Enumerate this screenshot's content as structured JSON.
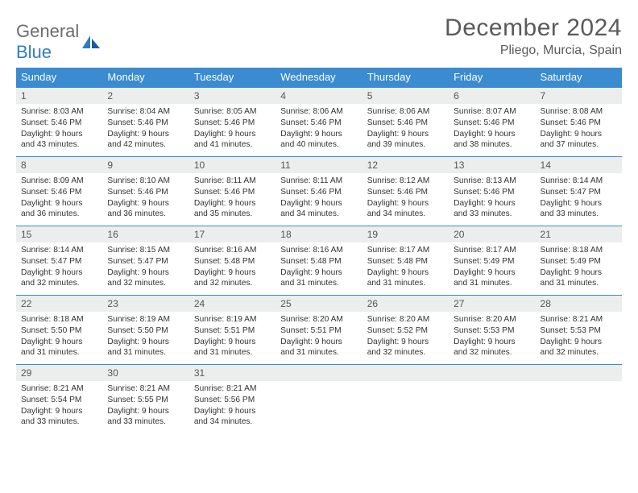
{
  "brand": {
    "word1": "General",
    "word2": "Blue"
  },
  "title": "December 2024",
  "location": "Pliego, Murcia, Spain",
  "colors": {
    "header_bg": "#3a8bd0",
    "header_text": "#ffffff",
    "daynum_bg": "#eceded",
    "rule": "#3a8bd0",
    "body_text": "#333333",
    "title_color": "#5a5a5a",
    "logo_gray": "#6c6c6c",
    "logo_blue": "#2f7bc2"
  },
  "typography": {
    "title_fontsize": 30,
    "location_fontsize": 16,
    "dow_fontsize": 13,
    "daynum_fontsize": 12,
    "body_fontsize": 10.2
  },
  "days_of_week": [
    "Sunday",
    "Monday",
    "Tuesday",
    "Wednesday",
    "Thursday",
    "Friday",
    "Saturday"
  ],
  "weeks": [
    [
      {
        "n": "1",
        "sr": "8:03 AM",
        "ss": "5:46 PM",
        "dl": "9 hours and 43 minutes."
      },
      {
        "n": "2",
        "sr": "8:04 AM",
        "ss": "5:46 PM",
        "dl": "9 hours and 42 minutes."
      },
      {
        "n": "3",
        "sr": "8:05 AM",
        "ss": "5:46 PM",
        "dl": "9 hours and 41 minutes."
      },
      {
        "n": "4",
        "sr": "8:06 AM",
        "ss": "5:46 PM",
        "dl": "9 hours and 40 minutes."
      },
      {
        "n": "5",
        "sr": "8:06 AM",
        "ss": "5:46 PM",
        "dl": "9 hours and 39 minutes."
      },
      {
        "n": "6",
        "sr": "8:07 AM",
        "ss": "5:46 PM",
        "dl": "9 hours and 38 minutes."
      },
      {
        "n": "7",
        "sr": "8:08 AM",
        "ss": "5:46 PM",
        "dl": "9 hours and 37 minutes."
      }
    ],
    [
      {
        "n": "8",
        "sr": "8:09 AM",
        "ss": "5:46 PM",
        "dl": "9 hours and 36 minutes."
      },
      {
        "n": "9",
        "sr": "8:10 AM",
        "ss": "5:46 PM",
        "dl": "9 hours and 36 minutes."
      },
      {
        "n": "10",
        "sr": "8:11 AM",
        "ss": "5:46 PM",
        "dl": "9 hours and 35 minutes."
      },
      {
        "n": "11",
        "sr": "8:11 AM",
        "ss": "5:46 PM",
        "dl": "9 hours and 34 minutes."
      },
      {
        "n": "12",
        "sr": "8:12 AM",
        "ss": "5:46 PM",
        "dl": "9 hours and 34 minutes."
      },
      {
        "n": "13",
        "sr": "8:13 AM",
        "ss": "5:46 PM",
        "dl": "9 hours and 33 minutes."
      },
      {
        "n": "14",
        "sr": "8:14 AM",
        "ss": "5:47 PM",
        "dl": "9 hours and 33 minutes."
      }
    ],
    [
      {
        "n": "15",
        "sr": "8:14 AM",
        "ss": "5:47 PM",
        "dl": "9 hours and 32 minutes."
      },
      {
        "n": "16",
        "sr": "8:15 AM",
        "ss": "5:47 PM",
        "dl": "9 hours and 32 minutes."
      },
      {
        "n": "17",
        "sr": "8:16 AM",
        "ss": "5:48 PM",
        "dl": "9 hours and 32 minutes."
      },
      {
        "n": "18",
        "sr": "8:16 AM",
        "ss": "5:48 PM",
        "dl": "9 hours and 31 minutes."
      },
      {
        "n": "19",
        "sr": "8:17 AM",
        "ss": "5:48 PM",
        "dl": "9 hours and 31 minutes."
      },
      {
        "n": "20",
        "sr": "8:17 AM",
        "ss": "5:49 PM",
        "dl": "9 hours and 31 minutes."
      },
      {
        "n": "21",
        "sr": "8:18 AM",
        "ss": "5:49 PM",
        "dl": "9 hours and 31 minutes."
      }
    ],
    [
      {
        "n": "22",
        "sr": "8:18 AM",
        "ss": "5:50 PM",
        "dl": "9 hours and 31 minutes."
      },
      {
        "n": "23",
        "sr": "8:19 AM",
        "ss": "5:50 PM",
        "dl": "9 hours and 31 minutes."
      },
      {
        "n": "24",
        "sr": "8:19 AM",
        "ss": "5:51 PM",
        "dl": "9 hours and 31 minutes."
      },
      {
        "n": "25",
        "sr": "8:20 AM",
        "ss": "5:51 PM",
        "dl": "9 hours and 31 minutes."
      },
      {
        "n": "26",
        "sr": "8:20 AM",
        "ss": "5:52 PM",
        "dl": "9 hours and 32 minutes."
      },
      {
        "n": "27",
        "sr": "8:20 AM",
        "ss": "5:53 PM",
        "dl": "9 hours and 32 minutes."
      },
      {
        "n": "28",
        "sr": "8:21 AM",
        "ss": "5:53 PM",
        "dl": "9 hours and 32 minutes."
      }
    ],
    [
      {
        "n": "29",
        "sr": "8:21 AM",
        "ss": "5:54 PM",
        "dl": "9 hours and 33 minutes."
      },
      {
        "n": "30",
        "sr": "8:21 AM",
        "ss": "5:55 PM",
        "dl": "9 hours and 33 minutes."
      },
      {
        "n": "31",
        "sr": "8:21 AM",
        "ss": "5:56 PM",
        "dl": "9 hours and 34 minutes."
      },
      null,
      null,
      null,
      null
    ]
  ],
  "labels": {
    "sunrise": "Sunrise:",
    "sunset": "Sunset:",
    "daylight": "Daylight:"
  }
}
